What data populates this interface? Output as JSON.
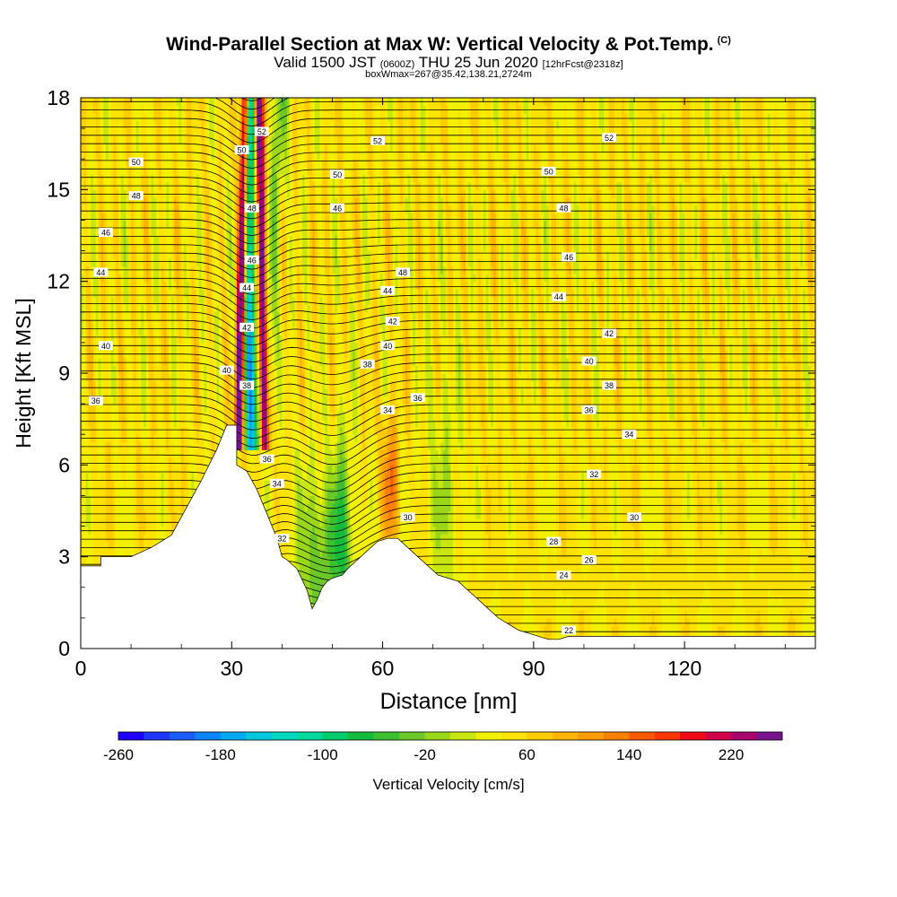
{
  "header": {
    "title": "Wind-Parallel Section at Max W: Vertical Velocity & Pot.Temp.",
    "copyright": "(C)",
    "subtitle_pre": "Valid 1500 JST",
    "subtitle_zulu": "(0600Z)",
    "subtitle_date": "THU 25 Jun 2020",
    "subtitle_fcst": "[12hrFcst@2318z]",
    "boxinfo": "boxWmax=267@35.42,138.21,2724m"
  },
  "chart_data": {
    "type": "heatmap",
    "title": "Wind-Parallel Section at Max W: Vertical Velocity & Pot.Temp.",
    "xlabel": "Distance [nm]",
    "ylabel": "Height [Kft MSL]",
    "xlim": [
      0,
      146
    ],
    "ylim": [
      0,
      18
    ],
    "xticks": [
      "0",
      "30",
      "60",
      "90",
      "120"
    ],
    "yticks": [
      "0",
      "3",
      "6",
      "9",
      "12",
      "15",
      "18"
    ],
    "xtick_values": [
      0,
      30,
      60,
      90,
      120
    ],
    "ytick_values": [
      0,
      3,
      6,
      9,
      12,
      15,
      18
    ],
    "terrain": [
      [
        0,
        2.7
      ],
      [
        4,
        2.7
      ],
      [
        4,
        3.0
      ],
      [
        10,
        3.0
      ],
      [
        14,
        3.3
      ],
      [
        18,
        3.7
      ],
      [
        20,
        4.3
      ],
      [
        22,
        4.9
      ],
      [
        24,
        5.5
      ],
      [
        27,
        6.5
      ],
      [
        29,
        7.3
      ],
      [
        31,
        7.3
      ],
      [
        31,
        6.0
      ],
      [
        33,
        5.8
      ],
      [
        35,
        5.2
      ],
      [
        37,
        4.4
      ],
      [
        39,
        3.6
      ],
      [
        40,
        3.0
      ],
      [
        41,
        2.9
      ],
      [
        43,
        2.6
      ],
      [
        45,
        1.9
      ],
      [
        46,
        1.3
      ],
      [
        47,
        1.6
      ],
      [
        48,
        2.0
      ],
      [
        49,
        2.2
      ],
      [
        50,
        2.3
      ],
      [
        52,
        2.4
      ],
      [
        53,
        2.6
      ],
      [
        55,
        2.9
      ],
      [
        57,
        3.2
      ],
      [
        59,
        3.5
      ],
      [
        61,
        3.6
      ],
      [
        63,
        3.6
      ],
      [
        65,
        3.3
      ],
      [
        67,
        3.0
      ],
      [
        69,
        2.7
      ],
      [
        71,
        2.4
      ],
      [
        73,
        2.3
      ],
      [
        75,
        2.2
      ],
      [
        77,
        1.9
      ],
      [
        79,
        1.6
      ],
      [
        81,
        1.3
      ],
      [
        83,
        1.0
      ],
      [
        85,
        0.8
      ],
      [
        87,
        0.6
      ],
      [
        89,
        0.5
      ],
      [
        91,
        0.4
      ],
      [
        93,
        0.3
      ],
      [
        95,
        0.3
      ],
      [
        97,
        0.4
      ],
      [
        99,
        0.4
      ],
      [
        110,
        0.4
      ],
      [
        120,
        0.4
      ],
      [
        130,
        0.4
      ],
      [
        140,
        0.4
      ],
      [
        146,
        0.4
      ]
    ],
    "series": [
      {
        "name": "Vertical Velocity [cm/s]",
        "colorbar_ticks": [
          "-260",
          "-180",
          "-100",
          "-20",
          "60",
          "140",
          "220"
        ]
      }
    ],
    "colorbar_label": "Vertical Velocity [cm/s]",
    "colorbar_colors": [
      "#1e00ff",
      "#1f36ff",
      "#1b5cff",
      "#0d84ff",
      "#00a8f0",
      "#00c8dc",
      "#00d8c0",
      "#00d89c",
      "#00cc6c",
      "#14bc3c",
      "#3cc030",
      "#6cc828",
      "#9ad61a",
      "#c8e610",
      "#f2f200",
      "#ffe200",
      "#ffcc00",
      "#ffb400",
      "#ff9c00",
      "#ff8000",
      "#ff5a00",
      "#ff3600",
      "#f20a16",
      "#d2004a",
      "#a8006c",
      "#7a1290"
    ],
    "theta_levels": [
      "22",
      "24",
      "26",
      "28",
      "30",
      "32",
      "34",
      "36",
      "38",
      "40",
      "42",
      "44",
      "46",
      "48",
      "50",
      "52"
    ],
    "theta_labels": [
      {
        "t": "22",
        "x": 97,
        "y": 0.6
      },
      {
        "t": "24",
        "x": 96,
        "y": 2.4
      },
      {
        "t": "26",
        "x": 101,
        "y": 2.9
      },
      {
        "t": "28",
        "x": 94,
        "y": 3.5
      },
      {
        "t": "30",
        "x": 110,
        "y": 4.3
      },
      {
        "t": "30",
        "x": 65,
        "y": 4.3
      },
      {
        "t": "32",
        "x": 40,
        "y": 3.6
      },
      {
        "t": "32",
        "x": 102,
        "y": 5.7
      },
      {
        "t": "34",
        "x": 39,
        "y": 5.4
      },
      {
        "t": "34",
        "x": 61,
        "y": 7.8
      },
      {
        "t": "34",
        "x": 109,
        "y": 7.0
      },
      {
        "t": "36",
        "x": 3,
        "y": 8.1
      },
      {
        "t": "36",
        "x": 37,
        "y": 6.2
      },
      {
        "t": "36",
        "x": 67,
        "y": 8.2
      },
      {
        "t": "36",
        "x": 101,
        "y": 7.8
      },
      {
        "t": "38",
        "x": 33,
        "y": 8.6
      },
      {
        "t": "38",
        "x": 57,
        "y": 9.3
      },
      {
        "t": "38",
        "x": 105,
        "y": 8.6
      },
      {
        "t": "40",
        "x": 5,
        "y": 9.9
      },
      {
        "t": "40",
        "x": 29,
        "y": 9.1
      },
      {
        "t": "40",
        "x": 61,
        "y": 9.9
      },
      {
        "t": "40",
        "x": 101,
        "y": 9.4
      },
      {
        "t": "42",
        "x": 33,
        "y": 10.5
      },
      {
        "t": "42",
        "x": 62,
        "y": 10.7
      },
      {
        "t": "42",
        "x": 105,
        "y": 10.3
      },
      {
        "t": "44",
        "x": 4,
        "y": 12.3
      },
      {
        "t": "44",
        "x": 33,
        "y": 11.8
      },
      {
        "t": "44",
        "x": 61,
        "y": 11.7
      },
      {
        "t": "44",
        "x": 95,
        "y": 11.5
      },
      {
        "t": "46",
        "x": 5,
        "y": 13.6
      },
      {
        "t": "46",
        "x": 34,
        "y": 12.7
      },
      {
        "t": "46",
        "x": 51,
        "y": 14.4
      },
      {
        "t": "46",
        "x": 97,
        "y": 12.8
      },
      {
        "t": "48",
        "x": 11,
        "y": 14.8
      },
      {
        "t": "48",
        "x": 34,
        "y": 14.4
      },
      {
        "t": "48",
        "x": 64,
        "y": 12.3
      },
      {
        "t": "48",
        "x": 96,
        "y": 14.4
      },
      {
        "t": "50",
        "x": 11,
        "y": 15.9
      },
      {
        "t": "50",
        "x": 32,
        "y": 16.3
      },
      {
        "t": "50",
        "x": 51,
        "y": 15.5
      },
      {
        "t": "50",
        "x": 93,
        "y": 15.6
      },
      {
        "t": "52",
        "x": 36,
        "y": 16.9
      },
      {
        "t": "52",
        "x": 59,
        "y": 16.6
      },
      {
        "t": "52",
        "x": 105,
        "y": 16.7
      }
    ]
  }
}
